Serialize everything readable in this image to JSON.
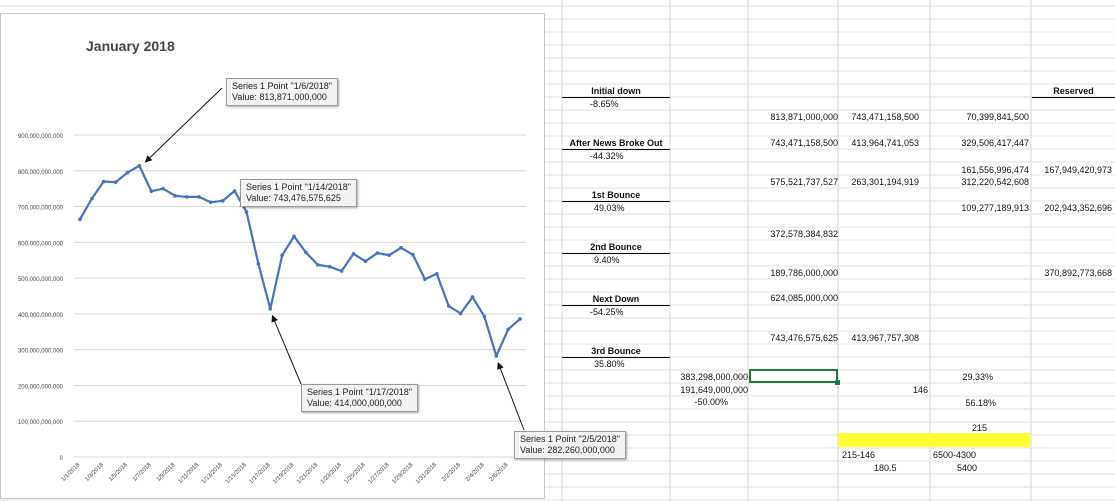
{
  "chart_data": {
    "type": "line",
    "title": "January 2018",
    "x": [
      "1/1/2018",
      "1/2/2018",
      "1/3/2018",
      "1/4/2018",
      "1/5/2018",
      "1/6/2018",
      "1/7/2018",
      "1/8/2018",
      "1/9/2018",
      "1/10/2018",
      "1/11/2018",
      "1/12/2018",
      "1/13/2018",
      "1/14/2018",
      "1/15/2018",
      "1/16/2018",
      "1/17/2018",
      "1/18/2018",
      "1/19/2018",
      "1/20/2018",
      "1/21/2018",
      "1/22/2018",
      "1/23/2018",
      "1/24/2018",
      "1/25/2018",
      "1/26/2018",
      "1/27/2018",
      "1/28/2018",
      "1/29/2018",
      "1/30/2018",
      "1/31/2018",
      "2/1/2018",
      "2/2/2018",
      "2/3/2018",
      "2/4/2018",
      "2/5/2018",
      "2/6/2018",
      "2/7/2018"
    ],
    "x_tick_labels": [
      "1/1/2018",
      "1/3/2018",
      "1/5/2018",
      "1/7/2018",
      "1/9/2018",
      "1/11/2018",
      "1/13/2018",
      "1/15/2018",
      "1/17/2018",
      "1/19/2018",
      "1/21/2018",
      "1/23/2018",
      "1/25/2018",
      "1/27/2018",
      "1/29/2018",
      "1/31/2018",
      "2/2/2018",
      "2/4/2018",
      "2/6/2018"
    ],
    "series": [
      {
        "values": [
          664000000000,
          722000000000,
          770000000000,
          768000000000,
          795000000000,
          813871000000,
          743000000000,
          750000000000,
          730000000000,
          727000000000,
          727000000000,
          712000000000,
          716000000000,
          743476575625,
          685000000000,
          540000000000,
          414000000000,
          564000000000,
          617000000000,
          572000000000,
          537000000000,
          532000000000,
          520000000000,
          568000000000,
          547000000000,
          570000000000,
          564000000000,
          585000000000,
          565000000000,
          497000000000,
          512000000000,
          422000000000,
          401000000000,
          447000000000,
          393000000000,
          282260000000,
          357000000000,
          386000000000
        ],
        "color": "#4472c4"
      }
    ],
    "ylim": [
      0,
      900000000000
    ],
    "y_tick_labels": [
      "0",
      "100,000,000,000",
      "200,000,000,000",
      "300,000,000,000",
      "400,000,000,000",
      "500,000,000,000",
      "600,000,000,000",
      "700,000,000,000",
      "800,000,000,000",
      "900,000,000,000"
    ],
    "grid": true,
    "legend": "none",
    "annotations": [
      {
        "index": 5,
        "line1": "Series 1 Point \"1/6/2018\"",
        "line2": "Value: 813,871,000,000"
      },
      {
        "index": 13,
        "line1": "Series 1 Point \"1/14/2018\"",
        "line2": "Value: 743,476,575,625"
      },
      {
        "index": 16,
        "line1": "Series 1 Point \"1/17/2018\"",
        "line2": "Value: 414,000,000,000"
      },
      {
        "index": 35,
        "line1": "Series 1 Point \"2/5/2018\"",
        "line2": "Value: 282,260,000,000"
      }
    ]
  },
  "sheet": {
    "labels": {
      "initial_down": "Initial down",
      "initial_down_val": "-8.65%",
      "after_news": "After News Broke Out",
      "after_news_val": "-44.32%",
      "first_bounce": "1st Bounce",
      "first_bounce_val": "49.03%",
      "second_bounce": "2nd Bounce",
      "second_bounce_val": "9.40%",
      "next_down": "Next Down",
      "next_down_val": "-54.25%",
      "third_bounce": "3rd Bounce",
      "third_bounce_val": "35.80%",
      "reserved": "Reserved"
    },
    "values": {
      "v1": "813,871,000,000",
      "v2": "743,471,158,500",
      "v3": "70,399,841,500",
      "v4": "743,471,158,500",
      "v5": "413,964,741,053",
      "v6": "329,506,417,447",
      "v7": "161,556,996,474",
      "v8": "167,949,420,973",
      "v9": "575,521,737,527",
      "v10": "263,301,194,919",
      "v11": "312,220,542,608",
      "v12": "109,277,189,913",
      "v13": "202,943,352,696",
      "v14": "372,578,384,832",
      "v15": "189,786,000,000",
      "v16": "370,892,773,668",
      "v17": "624,085,000,000",
      "v18": "743,476,575,625",
      "v19": "413,967,757,308",
      "v20": "383,298,000,000",
      "v21": "191,649,000,000",
      "v22": "-50.00%",
      "v23": "29.33%",
      "v24": "146",
      "v25": "56.18%",
      "v26": "215",
      "v27": "215-146",
      "v28": "180.5",
      "v29": "6500-4300",
      "v30": "5400"
    }
  }
}
